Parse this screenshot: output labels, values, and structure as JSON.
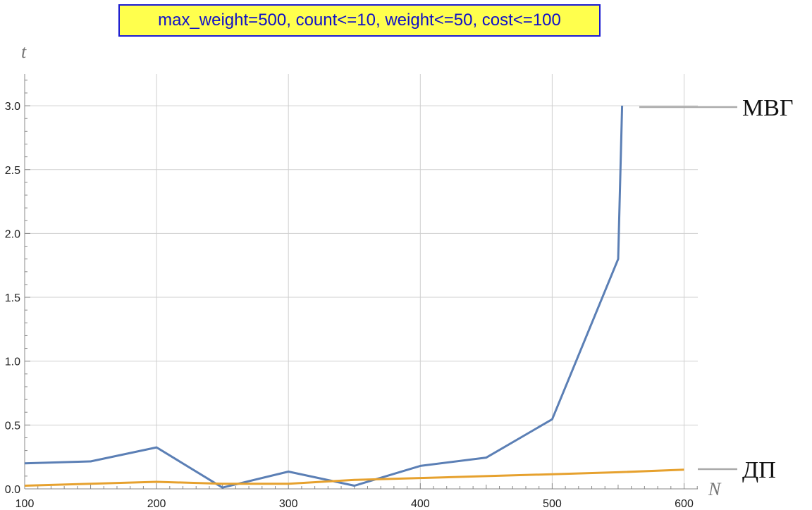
{
  "chart_data": {
    "type": "line",
    "title": "max_weight=500, count<=10, weight<=50, cost<=100",
    "xlabel": "N",
    "ylabel": "t",
    "xlim": [
      100,
      610
    ],
    "ylim": [
      0,
      3.25
    ],
    "xticks": [
      100,
      200,
      300,
      400,
      500,
      600
    ],
    "yticks": [
      0.0,
      0.5,
      1.0,
      1.5,
      2.0,
      2.5,
      3.0
    ],
    "xtick_labels": [
      "100",
      "200",
      "300",
      "400",
      "500",
      "600"
    ],
    "ytick_labels": [
      "0.0",
      "0.5",
      "1.0",
      "1.5",
      "2.0",
      "2.5",
      "3.0"
    ],
    "grid": true,
    "series": [
      {
        "name": "МВГ",
        "color": "#5b7fb5",
        "x": [
          100,
          150,
          200,
          250,
          300,
          350,
          400,
          450,
          500,
          550,
          553
        ],
        "y": [
          0.2,
          0.215,
          0.325,
          0.01,
          0.135,
          0.025,
          0.18,
          0.245,
          0.545,
          1.8,
          3.0
        ]
      },
      {
        "name": "ДП",
        "color": "#e6a12e",
        "x": [
          100,
          150,
          200,
          250,
          300,
          350,
          400,
          450,
          500,
          550,
          600
        ],
        "y": [
          0.025,
          0.04,
          0.055,
          0.04,
          0.04,
          0.07,
          0.085,
          0.1,
          0.115,
          0.13,
          0.15
        ]
      }
    ]
  }
}
